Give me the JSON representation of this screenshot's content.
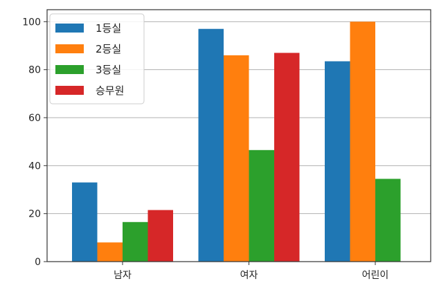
{
  "chart_data": {
    "type": "bar",
    "categories": [
      "남자",
      "여자",
      "어린이"
    ],
    "series": [
      {
        "name": "1등실",
        "values": [
          33,
          97,
          83.5
        ],
        "color": "#1f77b4"
      },
      {
        "name": "2등실",
        "values": [
          8,
          86,
          100
        ],
        "color": "#ff7f0e"
      },
      {
        "name": "3등실",
        "values": [
          16.5,
          46.5,
          34.5
        ],
        "color": "#2ca02c"
      },
      {
        "name": "승무원",
        "values": [
          21.5,
          87,
          null
        ],
        "color": "#d62728"
      }
    ],
    "ylim": [
      0,
      105
    ],
    "yticks": [
      "0",
      "20",
      "40",
      "60",
      "80",
      "100"
    ],
    "grid": "horizontal",
    "legend_position": "top-left"
  }
}
